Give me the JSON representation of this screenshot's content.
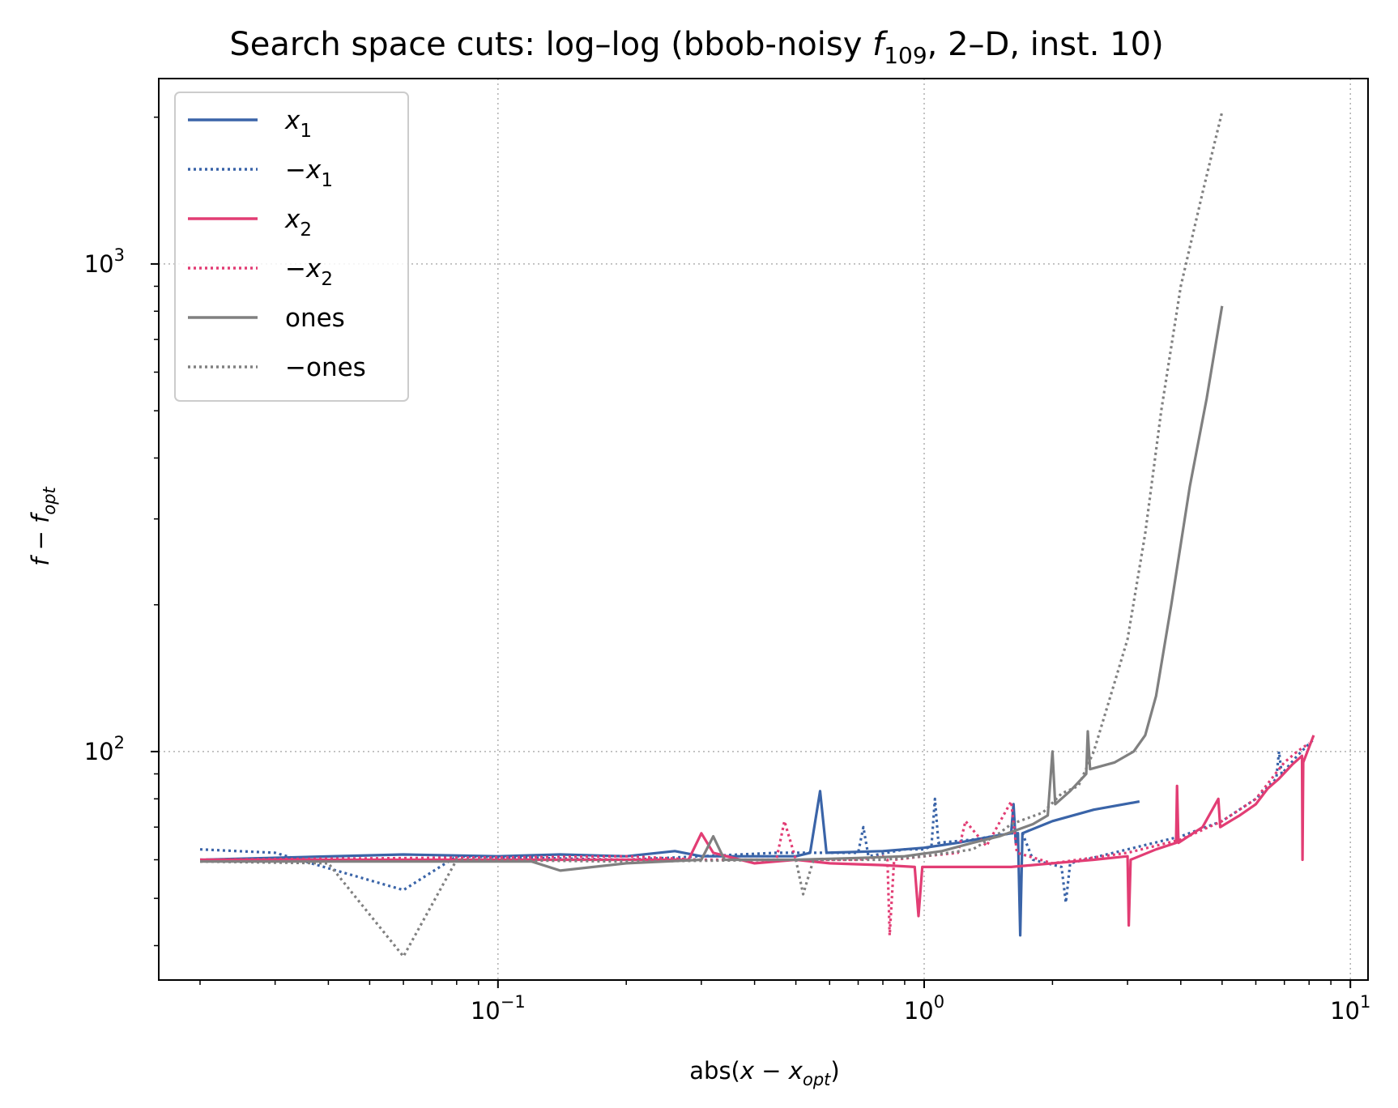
{
  "chart_data": {
    "type": "line",
    "title": {
      "main": "Search space cuts: log–log (bbob-noisy ",
      "f_symbol": "f",
      "f_subscript": "109",
      "tail": ", 2–D, inst. 10)"
    },
    "xlabel": {
      "prefix": "abs(",
      "var": "x",
      "minus": " − ",
      "var2": "x",
      "sub": "opt",
      "suffix": ")"
    },
    "ylabel": {
      "var": "f",
      "minus": " − ",
      "var2": "f",
      "sub": "opt"
    },
    "xscale": "log",
    "yscale": "log",
    "xlim": [
      0.016,
      11
    ],
    "ylim": [
      34,
      2400
    ],
    "x_ticks": [
      {
        "value": 0.1,
        "base": "10",
        "exp": "−1"
      },
      {
        "value": 1,
        "base": "10",
        "exp": "0"
      },
      {
        "value": 10,
        "base": "10",
        "exp": "1"
      }
    ],
    "y_ticks": [
      {
        "value": 100,
        "base": "10",
        "exp": "2"
      },
      {
        "value": 1000,
        "base": "10",
        "exp": "3"
      }
    ],
    "grid": true,
    "legend_position": "top-left",
    "colors": {
      "blue": "#3a64a8",
      "pink": "#e23d74",
      "gray": "#808080"
    },
    "series": [
      {
        "name": "x",
        "name_sub": "1",
        "name_prefix": "",
        "style": "solid",
        "color": "#3a64a8",
        "points": [
          [
            0.02,
            60
          ],
          [
            0.06,
            61.5
          ],
          [
            0.1,
            61
          ],
          [
            0.14,
            61.5
          ],
          [
            0.2,
            61
          ],
          [
            0.26,
            62.5
          ],
          [
            0.3,
            61
          ],
          [
            0.4,
            61
          ],
          [
            0.5,
            61
          ],
          [
            0.54,
            62
          ],
          [
            0.57,
            83
          ],
          [
            0.59,
            62
          ],
          [
            0.8,
            62.5
          ],
          [
            1.0,
            63.5
          ],
          [
            1.2,
            65
          ],
          [
            1.45,
            67
          ],
          [
            1.6,
            68
          ],
          [
            1.62,
            78
          ],
          [
            1.64,
            65
          ],
          [
            1.66,
            68
          ],
          [
            1.68,
            42
          ],
          [
            1.7,
            68
          ],
          [
            2.0,
            72
          ],
          [
            2.5,
            76
          ],
          [
            3.2,
            79
          ]
        ]
      },
      {
        "name": "x",
        "name_sub": "1",
        "name_prefix": "−",
        "style": "dotted",
        "color": "#3a64a8",
        "points": [
          [
            0.02,
            63
          ],
          [
            0.03,
            62
          ],
          [
            0.06,
            52
          ],
          [
            0.08,
            61
          ],
          [
            0.2,
            60
          ],
          [
            0.45,
            62
          ],
          [
            0.6,
            62
          ],
          [
            0.7,
            62
          ],
          [
            0.72,
            70
          ],
          [
            0.74,
            61
          ],
          [
            0.9,
            63
          ],
          [
            1.0,
            63
          ],
          [
            1.04,
            64
          ],
          [
            1.06,
            80
          ],
          [
            1.08,
            65
          ],
          [
            1.3,
            66
          ],
          [
            1.6,
            68
          ],
          [
            1.7,
            68
          ],
          [
            1.8,
            60
          ],
          [
            2.1,
            58
          ],
          [
            2.15,
            49
          ],
          [
            2.2,
            59
          ],
          [
            3.0,
            63
          ],
          [
            4.0,
            67
          ],
          [
            5.0,
            72
          ],
          [
            6.0,
            80
          ],
          [
            6.7,
            88
          ],
          [
            6.8,
            100
          ],
          [
            6.9,
            90
          ],
          [
            7.5,
            98
          ],
          [
            8.2,
            106
          ]
        ]
      },
      {
        "name": "x",
        "name_sub": "2",
        "name_prefix": "",
        "style": "solid",
        "color": "#e23d74",
        "points": [
          [
            0.02,
            60
          ],
          [
            0.28,
            60
          ],
          [
            0.3,
            68
          ],
          [
            0.32,
            62
          ],
          [
            0.4,
            59
          ],
          [
            0.5,
            60
          ],
          [
            0.6,
            59
          ],
          [
            0.8,
            58.5
          ],
          [
            0.95,
            58
          ],
          [
            0.97,
            46
          ],
          [
            0.99,
            58
          ],
          [
            1.5,
            58
          ],
          [
            1.6,
            58
          ],
          [
            2.0,
            59
          ],
          [
            2.5,
            60
          ],
          [
            3.0,
            61
          ],
          [
            3.02,
            44
          ],
          [
            3.05,
            60
          ],
          [
            3.5,
            63
          ],
          [
            3.9,
            65
          ],
          [
            3.92,
            85
          ],
          [
            3.95,
            65
          ],
          [
            4.5,
            70
          ],
          [
            4.9,
            80
          ],
          [
            4.95,
            70
          ],
          [
            5.5,
            74
          ],
          [
            6.0,
            78
          ],
          [
            6.4,
            84
          ],
          [
            6.8,
            88
          ],
          [
            7.3,
            94
          ],
          [
            7.7,
            98
          ],
          [
            7.72,
            60
          ],
          [
            7.75,
            95
          ],
          [
            8.2,
            108
          ]
        ]
      },
      {
        "name": "x",
        "name_sub": "2",
        "name_prefix": "−",
        "style": "dotted",
        "color": "#e23d74",
        "points": [
          [
            0.02,
            60
          ],
          [
            0.2,
            61
          ],
          [
            0.3,
            60
          ],
          [
            0.45,
            60
          ],
          [
            0.47,
            72
          ],
          [
            0.5,
            60
          ],
          [
            0.7,
            60
          ],
          [
            0.8,
            61
          ],
          [
            0.82,
            60
          ],
          [
            0.83,
            42
          ],
          [
            0.85,
            60
          ],
          [
            1.0,
            61
          ],
          [
            1.2,
            62
          ],
          [
            1.25,
            72
          ],
          [
            1.4,
            64
          ],
          [
            1.6,
            79
          ],
          [
            1.65,
            62
          ],
          [
            2.0,
            59
          ],
          [
            3.0,
            62
          ],
          [
            4.0,
            66
          ],
          [
            5.0,
            72
          ],
          [
            6.0,
            80
          ],
          [
            7.0,
            95
          ],
          [
            7.5,
            100
          ],
          [
            8.0,
            104
          ]
        ]
      },
      {
        "name": "ones",
        "name_sub": "",
        "name_prefix": "",
        "style": "solid",
        "color": "#808080",
        "points": [
          [
            0.02,
            59.5
          ],
          [
            0.12,
            59.5
          ],
          [
            0.14,
            57
          ],
          [
            0.2,
            59
          ],
          [
            0.3,
            60
          ],
          [
            0.32,
            67
          ],
          [
            0.34,
            60
          ],
          [
            0.4,
            60
          ],
          [
            0.5,
            60
          ],
          [
            0.7,
            60.5
          ],
          [
            0.9,
            61
          ],
          [
            1.1,
            62.5
          ],
          [
            1.3,
            65
          ],
          [
            1.5,
            67
          ],
          [
            1.8,
            71
          ],
          [
            1.95,
            74
          ],
          [
            2.0,
            100
          ],
          [
            2.03,
            78
          ],
          [
            2.2,
            83
          ],
          [
            2.4,
            90
          ],
          [
            2.42,
            110
          ],
          [
            2.45,
            92
          ],
          [
            2.8,
            95
          ],
          [
            3.1,
            100
          ],
          [
            3.3,
            108
          ],
          [
            3.5,
            130
          ],
          [
            3.8,
            200
          ],
          [
            4.2,
            350
          ],
          [
            4.6,
            530
          ],
          [
            5.0,
            820
          ]
        ]
      },
      {
        "name": "ones",
        "name_sub": "",
        "name_prefix": "−",
        "style": "dotted",
        "color": "#808080",
        "points": [
          [
            0.02,
            59.5
          ],
          [
            0.04,
            59
          ],
          [
            0.06,
            38
          ],
          [
            0.08,
            60
          ],
          [
            0.2,
            59.5
          ],
          [
            0.5,
            60
          ],
          [
            0.52,
            51
          ],
          [
            0.55,
            60
          ],
          [
            0.8,
            60
          ],
          [
            1.0,
            61
          ],
          [
            1.3,
            63
          ],
          [
            1.5,
            68
          ],
          [
            1.6,
            71
          ],
          [
            1.9,
            75
          ],
          [
            2.1,
            82
          ],
          [
            2.3,
            85
          ],
          [
            2.5,
            100
          ],
          [
            2.7,
            125
          ],
          [
            3.0,
            170
          ],
          [
            3.3,
            280
          ],
          [
            3.6,
            500
          ],
          [
            4.0,
            900
          ],
          [
            4.5,
            1400
          ],
          [
            5.0,
            2050
          ]
        ]
      }
    ]
  }
}
